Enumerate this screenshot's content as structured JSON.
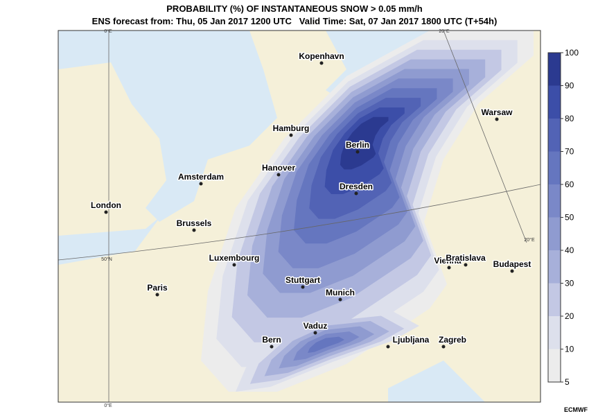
{
  "header": {
    "title": "PROBABILITY (%) OF INSTANTANEOUS SNOW > 0.05 mm/h",
    "subtitle": "ENS forecast from: Thu, 05 Jan 2017 1200 UTC   Valid Time: Sat, 07 Jan 2017 1800 UTC (T+54h)"
  },
  "map": {
    "cities": [
      "Kopenhavn",
      "Hamburg",
      "Berlin",
      "Hanover",
      "Amsterdam",
      "Dresden",
      "London",
      "Brussels",
      "Warsaw",
      "Luxembourg",
      "Vienna",
      "Bratislava",
      "Budapest",
      "Paris",
      "Stuttgart",
      "Munich",
      "Vaduz",
      "Bern",
      "Ljubljana",
      "Zagreb"
    ],
    "graticule_labels": [
      "0°E",
      "0°E",
      "20°E",
      "20°E",
      "50°N"
    ]
  },
  "colorbar": {
    "ticks": [
      5,
      10,
      20,
      30,
      40,
      50,
      60,
      70,
      80,
      90,
      100
    ],
    "colors": [
      "#ececec",
      "#dde0ec",
      "#c3c8e4",
      "#a7b0da",
      "#8f9bd0",
      "#7a88c8",
      "#6576bf",
      "#5263b5",
      "#3c4ea8",
      "#2b3a90"
    ]
  },
  "credit": "ECMWF"
}
